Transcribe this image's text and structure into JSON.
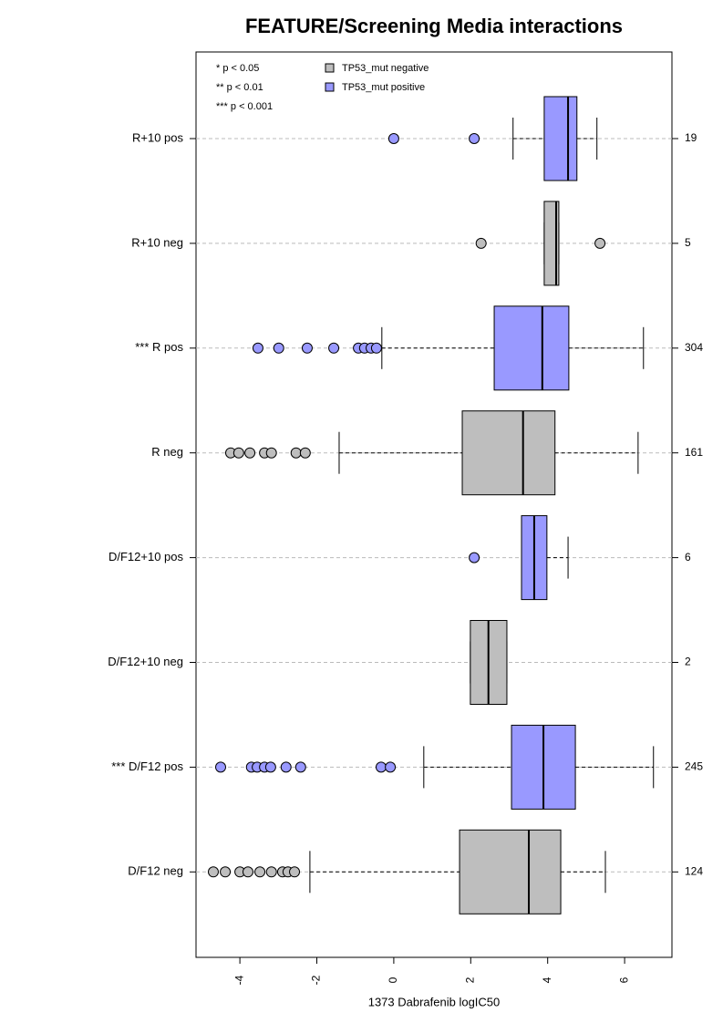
{
  "chart_data": {
    "type": "boxplot",
    "orientation": "horizontal",
    "title": "FEATURE/Screening Media interactions",
    "x_label": "1373 Dabrafenib logIC50",
    "xlim": [
      -5.14,
      7.23
    ],
    "xticks": [
      -4,
      -2,
      0,
      2,
      4,
      6
    ],
    "legend_notes": [
      "* p < 0.05",
      "** p < 0.01",
      "*** p < 0.001"
    ],
    "series": [
      {
        "name": "TP53_mut negative",
        "color": "#bebebe"
      },
      {
        "name": "TP53_mut positive",
        "color": "#9999ff"
      }
    ],
    "legend_position": "top-left",
    "grid": true,
    "categories": [
      "R+10 pos",
      "R+10 neg",
      "*** R pos",
      "R neg",
      "D/F12+10 pos",
      "D/F12+10 neg",
      "*** D/F12 pos",
      "D/F12 neg"
    ],
    "boxes": [
      {
        "series": 1,
        "n": 19,
        "lo": 3.1,
        "q1": 3.91,
        "median": 4.53,
        "q3": 4.76,
        "hi": 5.28,
        "outliers": [
          0.0,
          2.09
        ]
      },
      {
        "series": 0,
        "n": 5,
        "lo": 3.91,
        "q1": 3.91,
        "median": 4.22,
        "q3": 4.29,
        "hi": 4.29,
        "outliers": [
          2.27,
          5.36
        ]
      },
      {
        "series": 1,
        "n": 304,
        "lo": -0.31,
        "q1": 2.61,
        "median": 3.86,
        "q3": 4.55,
        "hi": 6.49,
        "outliers": [
          -3.53,
          -2.99,
          -2.25,
          -1.56,
          -0.92,
          -0.76,
          -0.59,
          -0.45
        ]
      },
      {
        "series": 0,
        "n": 161,
        "lo": -1.42,
        "q1": 1.78,
        "median": 3.36,
        "q3": 4.19,
        "hi": 6.35,
        "outliers": [
          -4.24,
          -4.03,
          -3.74,
          -3.36,
          -3.18,
          -2.54,
          -2.3
        ]
      },
      {
        "series": 1,
        "n": 6,
        "lo": 3.32,
        "q1": 3.32,
        "median": 3.65,
        "q3": 3.98,
        "hi": 4.53,
        "outliers": [
          2.09
        ]
      },
      {
        "series": 0,
        "n": 2,
        "lo": 1.99,
        "q1": 1.99,
        "median": 2.46,
        "q3": 2.94,
        "hi": 2.94,
        "outliers": []
      },
      {
        "series": 1,
        "n": 245,
        "lo": 0.78,
        "q1": 3.06,
        "median": 3.89,
        "q3": 4.72,
        "hi": 6.75,
        "outliers": [
          -4.5,
          -3.7,
          -3.55,
          -3.36,
          -3.2,
          -2.8,
          -2.42,
          -0.33,
          -0.09
        ]
      },
      {
        "series": 0,
        "n": 124,
        "lo": -2.18,
        "q1": 1.71,
        "median": 3.51,
        "q3": 4.34,
        "hi": 5.5,
        "outliers": [
          -4.69,
          -4.38,
          -4.0,
          -3.79,
          -3.48,
          -3.18,
          -2.89,
          -2.75,
          -2.58
        ]
      }
    ]
  }
}
